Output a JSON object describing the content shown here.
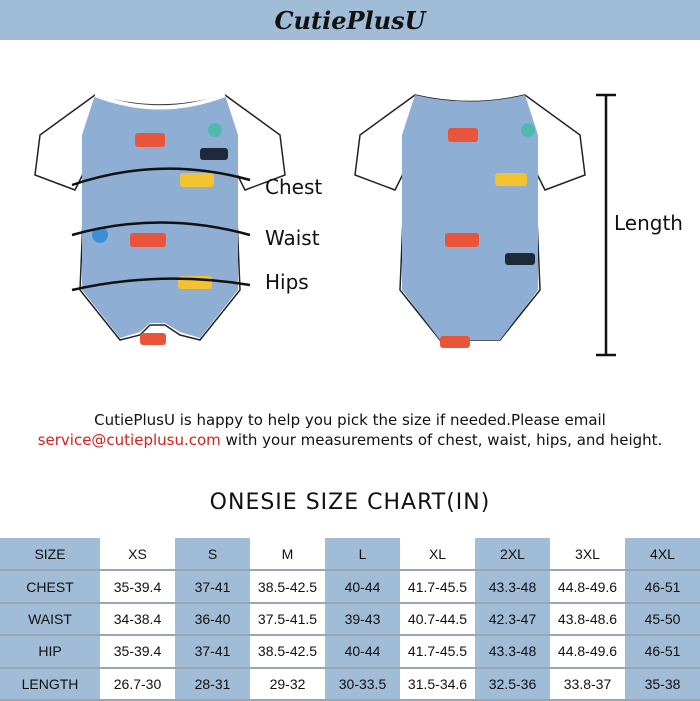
{
  "header": {
    "logo": "CutiePlusU"
  },
  "labels": {
    "chest": "Chest",
    "waist": "Waist",
    "hips": "Hips",
    "length": "Length"
  },
  "note": {
    "line1": "CutiePlusU is happy to help you pick the size if needed.Please email",
    "email": "service@cutieplusu.com",
    "line2_rest": " with your measurements of chest, waist, hips, and height."
  },
  "chart_title": "ONESIE  SIZE  CHART(IN)",
  "colors": {
    "header_blue": "#a0bcd6",
    "email_red": "#d8201c",
    "onesie_blue": "#8eaed3"
  },
  "table": {
    "header": [
      "SIZE",
      "XS",
      "S",
      "M",
      "L",
      "XL",
      "2XL",
      "3XL",
      "4XL"
    ],
    "rows": [
      [
        "CHEST",
        "35-39.4",
        "37-41",
        "38.5-42.5",
        "40-44",
        "41.7-45.5",
        "43.3-48",
        "44.8-49.6",
        "46-51"
      ],
      [
        "WAIST",
        "34-38.4",
        "36-40",
        "37.5-41.5",
        "39-43",
        "40.7-44.5",
        "42.3-47",
        "43.8-48.6",
        "45-50"
      ],
      [
        "HIP",
        "35-39.4",
        "37-41",
        "38.5-42.5",
        "40-44",
        "41.7-45.5",
        "43.3-48",
        "44.8-49.6",
        "46-51"
      ],
      [
        "LENGTH",
        "26.7-30",
        "28-31",
        "29-32",
        "30-33.5",
        "31.5-34.6",
        "32.5-36",
        "33.8-37",
        "35-38"
      ]
    ]
  }
}
